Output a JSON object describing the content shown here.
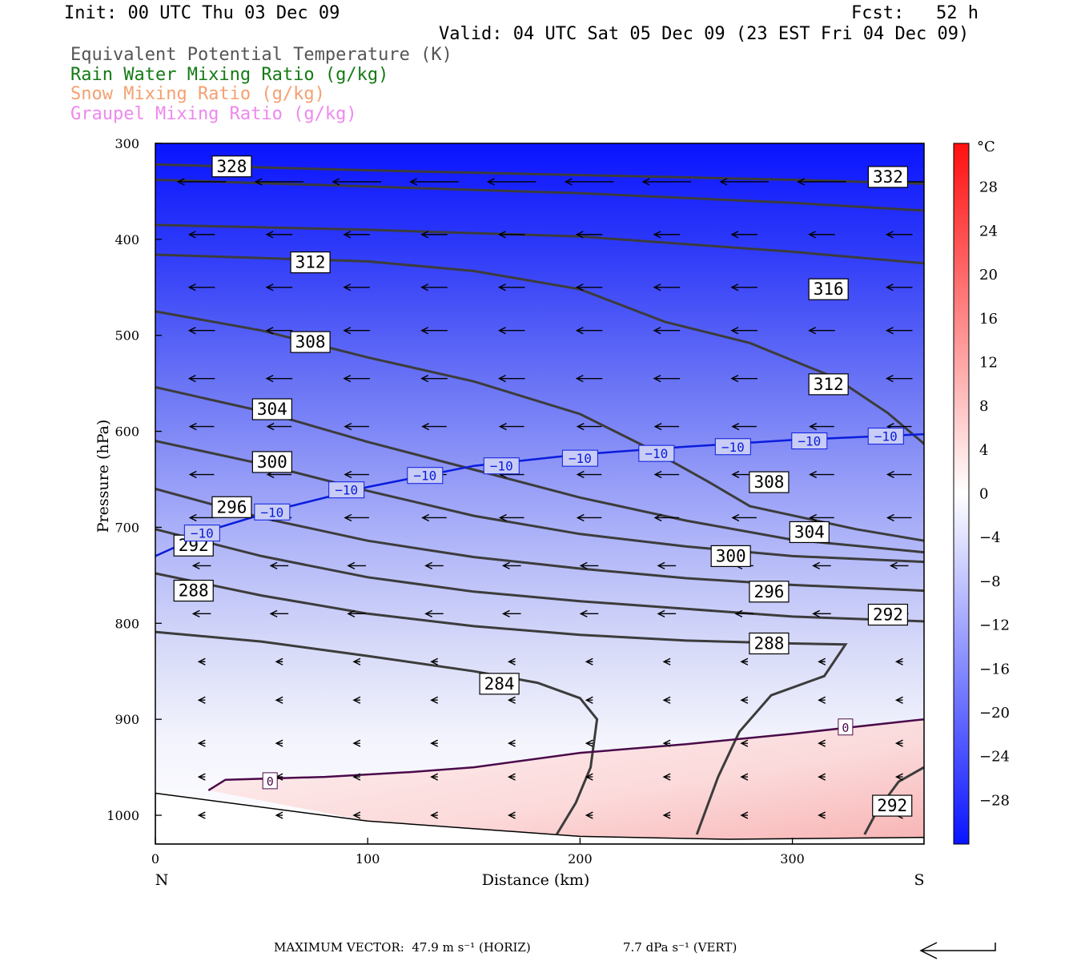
{
  "header": {
    "init": "Init: 00 UTC Thu 03 Dec 09",
    "forecast": "Fcst:   52 h",
    "valid": "Valid: 04 UTC Sat 05 Dec 09 (23 EST Fri 04 Dec 09)",
    "legend": [
      {
        "label": "Equivalent Potential Temperature (K)",
        "color": "#555555"
      },
      {
        "label": "Rain Water Mixing Ratio (g/kg)",
        "color": "#157a15"
      },
      {
        "label": "Snow Mixing Ratio (g/kg)",
        "color": "#f5a070"
      },
      {
        "label": "Graupel Mixing Ratio (g/kg)",
        "color": "#ee88ee"
      }
    ]
  },
  "footer": {
    "max_vector_label": "MAXIMUM VECTOR:",
    "horiz_value": "47.9",
    "horiz_unit": "m s⁻¹ (HORIZ)",
    "vert_value": "7.7",
    "vert_unit": "dPa s⁻¹ (VERT)"
  },
  "chart_data": {
    "type": "contour",
    "xlabel": "Distance (km)",
    "ylabel": "Pressure (hPa)",
    "xlim": [
      0,
      362
    ],
    "ylim": [
      300,
      1030
    ],
    "xticks": [
      0,
      100,
      200,
      300
    ],
    "yticks": [
      300,
      400,
      500,
      600,
      700,
      800,
      900,
      1000
    ],
    "x_end_labels": {
      "left": "N",
      "right": "S"
    },
    "colorbar": {
      "unit": "°C",
      "ticks": [
        28,
        24,
        20,
        16,
        12,
        8,
        4,
        0,
        -4,
        -8,
        -12,
        -16,
        -20,
        -24,
        -28
      ],
      "range": [
        -32,
        32
      ],
      "colors": {
        "cold": "#0a14ff",
        "zero": "#ffffff",
        "warm": "#ff0a0a"
      }
    },
    "theta_e_contours": [
      {
        "value": 328,
        "label": "328",
        "points": [
          [
            0,
            322
          ],
          [
            100,
            328
          ],
          [
            200,
            333
          ],
          [
            300,
            338
          ],
          [
            362,
            342
          ]
        ],
        "label_at": [
          36,
          324
        ]
      },
      {
        "value": 332,
        "label": "332",
        "points": [
          [
            0,
            338
          ],
          [
            100,
            345
          ],
          [
            200,
            352
          ],
          [
            300,
            362
          ],
          [
            362,
            370
          ]
        ],
        "label_at": [
          345,
          335
        ]
      },
      {
        "value": 316,
        "label": "316",
        "points": [
          [
            0,
            385
          ],
          [
            100,
            390
          ],
          [
            200,
            397
          ],
          [
            300,
            413
          ],
          [
            362,
            425
          ]
        ],
        "label_at": [
          317,
          452
        ]
      },
      {
        "value": 312,
        "label": "312",
        "points": [
          [
            0,
            416
          ],
          [
            100,
            423
          ],
          [
            150,
            433
          ],
          [
            200,
            452
          ],
          [
            240,
            486
          ],
          [
            280,
            508
          ],
          [
            320,
            544
          ],
          [
            345,
            581
          ],
          [
            362,
            613
          ]
        ],
        "label_at": [
          73,
          424
        ],
        "label2": "312",
        "label2_at": [
          317,
          551
        ]
      },
      {
        "value": 308,
        "label": "308",
        "points": [
          [
            0,
            475
          ],
          [
            50,
            495
          ],
          [
            100,
            523
          ],
          [
            150,
            548
          ],
          [
            200,
            582
          ],
          [
            230,
            615
          ],
          [
            260,
            652
          ],
          [
            280,
            678
          ],
          [
            330,
            702
          ],
          [
            362,
            714
          ]
        ],
        "label_at": [
          73,
          507
        ],
        "label2": "308",
        "label2_at": [
          289,
          653
        ]
      },
      {
        "value": 304,
        "label": "304",
        "points": [
          [
            0,
            554
          ],
          [
            50,
            579
          ],
          [
            100,
            611
          ],
          [
            150,
            640
          ],
          [
            200,
            669
          ],
          [
            250,
            693
          ],
          [
            300,
            713
          ],
          [
            362,
            726
          ]
        ],
        "label_at": [
          55,
          577
        ],
        "label2": "304",
        "label2_at": [
          308,
          705
        ]
      },
      {
        "value": 300,
        "label": "300",
        "points": [
          [
            0,
            610
          ],
          [
            50,
            634
          ],
          [
            100,
            662
          ],
          [
            150,
            688
          ],
          [
            200,
            707
          ],
          [
            250,
            720
          ],
          [
            300,
            730
          ],
          [
            362,
            736
          ]
        ],
        "label_at": [
          55,
          632
        ],
        "label2": "300",
        "label2_at": [
          271,
          730
        ]
      },
      {
        "value": 296,
        "label": "296",
        "points": [
          [
            0,
            660
          ],
          [
            50,
            690
          ],
          [
            100,
            714
          ],
          [
            150,
            731
          ],
          [
            200,
            743
          ],
          [
            250,
            753
          ],
          [
            300,
            760
          ],
          [
            362,
            766
          ]
        ],
        "label_at": [
          36,
          679
        ],
        "label2": "296",
        "label2_at": [
          289,
          767
        ]
      },
      {
        "value": 292,
        "label": "292",
        "points": [
          [
            0,
            702
          ],
          [
            50,
            730
          ],
          [
            100,
            752
          ],
          [
            150,
            767
          ],
          [
            200,
            777
          ],
          [
            250,
            785
          ],
          [
            300,
            793
          ],
          [
            362,
            798
          ]
        ],
        "label_at": [
          18,
          719
        ],
        "label2": "292",
        "label2_at": [
          345,
          791
        ]
      },
      {
        "value": 288,
        "label": "288",
        "points": [
          [
            0,
            748
          ],
          [
            50,
            771
          ],
          [
            100,
            790
          ],
          [
            150,
            803
          ],
          [
            200,
            812
          ],
          [
            250,
            818
          ],
          [
            300,
            821
          ],
          [
            325,
            822
          ],
          [
            315,
            855
          ],
          [
            290,
            875
          ],
          [
            275,
            913
          ],
          [
            265,
            960
          ],
          [
            255,
            1020
          ]
        ],
        "label_at": [
          18,
          766
        ],
        "label2": "288",
        "label2_at": [
          289,
          821
        ]
      },
      {
        "value": 284,
        "label": "284",
        "points": [
          [
            0,
            809
          ],
          [
            50,
            819
          ],
          [
            100,
            834
          ],
          [
            150,
            850
          ],
          [
            180,
            862
          ],
          [
            200,
            878
          ],
          [
            208,
            900
          ],
          [
            205,
            950
          ],
          [
            198,
            987
          ],
          [
            189,
            1020
          ]
        ],
        "label_at": [
          162,
          863
        ]
      },
      {
        "value": 292,
        "label": "292",
        "points": [
          [
            334,
            1020
          ],
          [
            340,
            995
          ],
          [
            350,
            965
          ],
          [
            362,
            950
          ]
        ],
        "label_at": [
          347,
          990
        ]
      }
    ],
    "isotherm_minus10": {
      "label": "−10",
      "points": [
        [
          0,
          730
        ],
        [
          30,
          700
        ],
        [
          60,
          680
        ],
        [
          100,
          658
        ],
        [
          150,
          636
        ],
        [
          200,
          624
        ],
        [
          250,
          616
        ],
        [
          300,
          609
        ],
        [
          362,
          603
        ]
      ],
      "labels_at": [
        [
          22,
          706
        ],
        [
          55,
          684
        ],
        [
          90,
          661
        ],
        [
          127,
          646
        ],
        [
          163,
          636
        ],
        [
          200,
          628
        ],
        [
          236,
          623
        ],
        [
          272,
          616
        ],
        [
          308,
          610
        ],
        [
          344,
          605
        ]
      ]
    },
    "isotherm_zero": {
      "label": "0",
      "points": [
        [
          25,
          974
        ],
        [
          33,
          963
        ],
        [
          80,
          960
        ],
        [
          120,
          955
        ],
        [
          150,
          950
        ],
        [
          200,
          935
        ],
        [
          250,
          926
        ],
        [
          300,
          915
        ],
        [
          362,
          900
        ]
      ],
      "labels_at": [
        [
          54,
          964
        ],
        [
          325,
          908
        ]
      ]
    },
    "ground_pressure": [
      [
        0,
        977
      ],
      [
        100,
        1006
      ],
      [
        200,
        1022
      ],
      [
        270,
        1025
      ],
      [
        362,
        1023
      ]
    ]
  }
}
